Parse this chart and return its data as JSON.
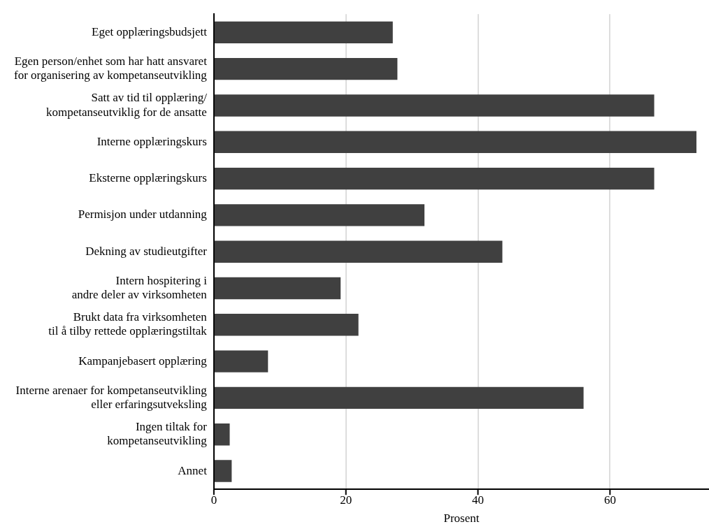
{
  "chart_data": {
    "type": "bar",
    "orientation": "horizontal",
    "xlabel": "Prosent",
    "categories": [
      "Eget opplæringsbudsjett",
      "Egen person/enhet som har hatt ansvaret\nfor organisering av kompetanseutvikling",
      "Satt av tid til opplæring/\nkompetanseutviklig for de ansatte",
      "Interne opplæringskurs",
      "Eksterne opplæringskurs",
      "Permisjon under utdanning",
      "Dekning av studieutgifter",
      "Intern hospitering i\nandre deler av virksomheten",
      "Brukt data fra virksomheten\ntil å tilby rettede opplæringstiltak",
      "Kampanjebasert opplæring",
      "Interne arenaer for kompetanseutvikling\neller erfaringsutveksling",
      "Ingen tiltak for\nkompetanseutvikling",
      "Annet"
    ],
    "values": [
      27.1,
      27.8,
      66.7,
      73.1,
      66.7,
      31.9,
      43.7,
      19.2,
      21.9,
      8.2,
      56.0,
      2.4,
      2.7
    ],
    "color": "#404040",
    "xlim": [
      0,
      75
    ],
    "xticks": [
      0,
      20,
      40,
      60
    ],
    "grid": "x",
    "legend": false
  }
}
